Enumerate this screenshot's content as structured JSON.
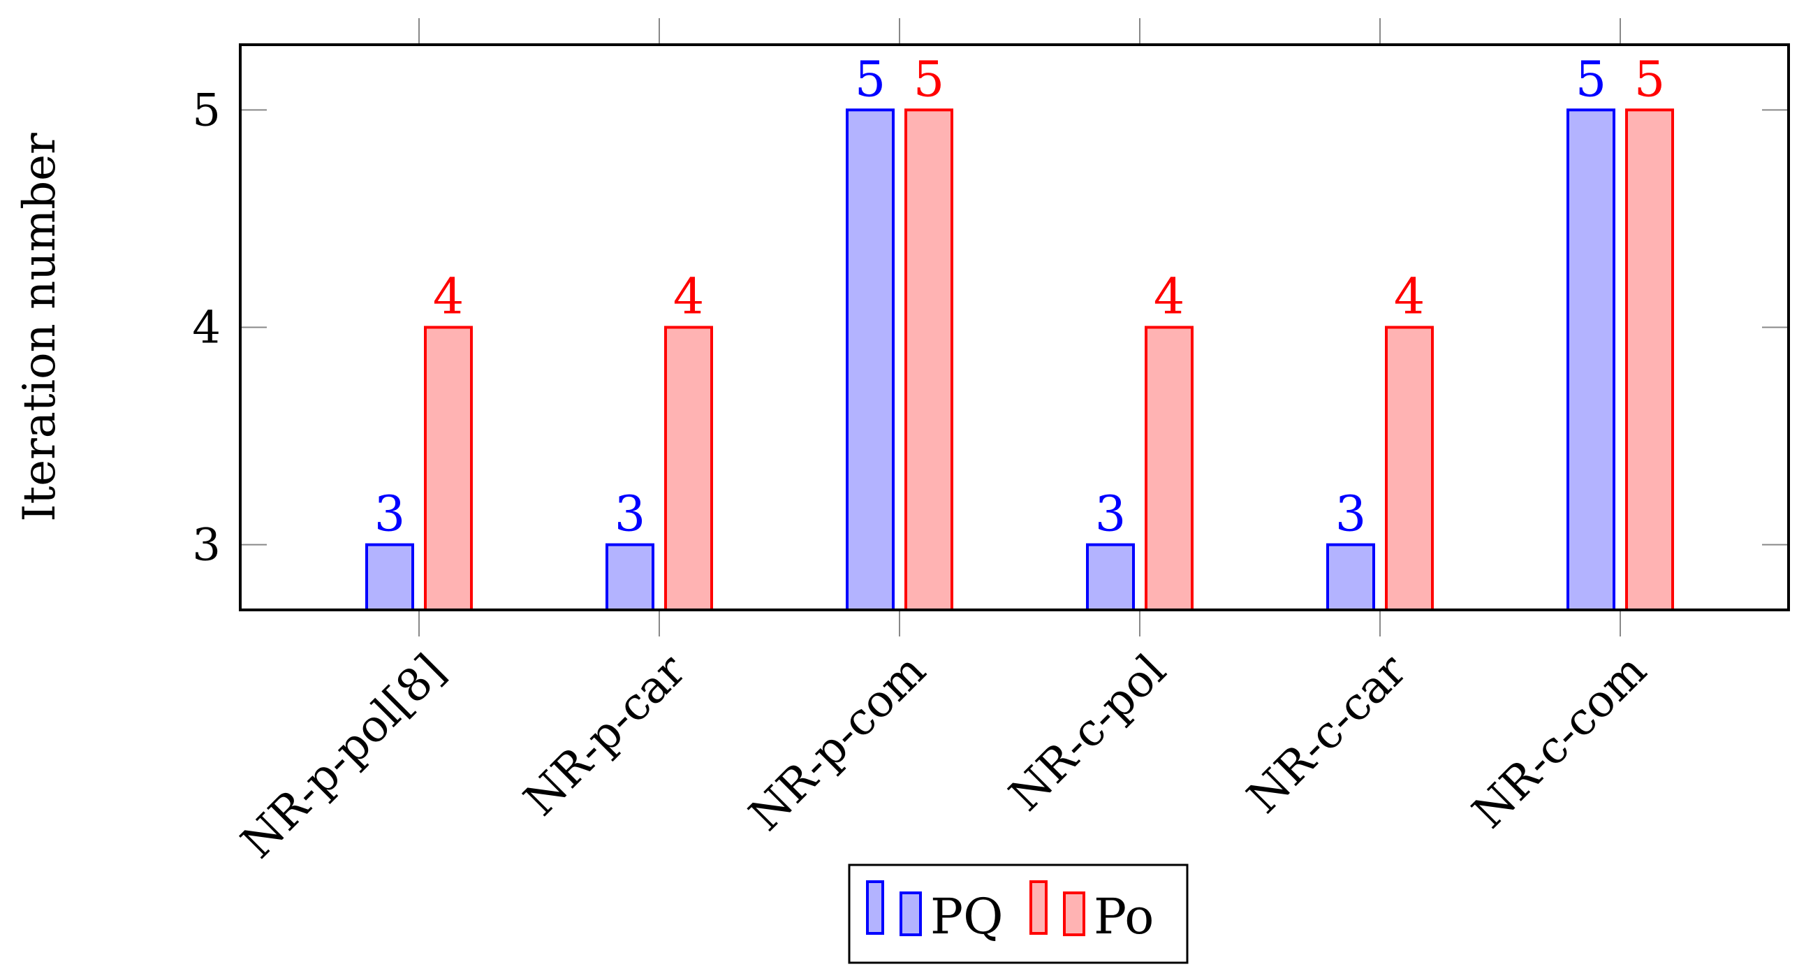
{
  "chart_data": {
    "type": "bar",
    "title": "",
    "xlabel": "",
    "ylabel": "Iteration number",
    "categories": [
      "NR-p-pol[8]",
      "NR-p-car",
      "NR-p-com",
      "NR-c-pol",
      "NR-c-car",
      "NR-c-com"
    ],
    "series": [
      {
        "name": "PQ",
        "values": [
          3,
          3,
          5,
          3,
          3,
          5
        ],
        "stroke": "#0000ff",
        "fill": "#b3b3ff"
      },
      {
        "name": "Po",
        "values": [
          4,
          4,
          5,
          4,
          4,
          5
        ],
        "stroke": "#ff0000",
        "fill": "#ffb3b3"
      }
    ],
    "ylim": [
      2.7,
      5.3
    ],
    "yticks": [
      3,
      4,
      5
    ],
    "data_labels": true,
    "grid": false,
    "legend_position": "bottom-center"
  }
}
